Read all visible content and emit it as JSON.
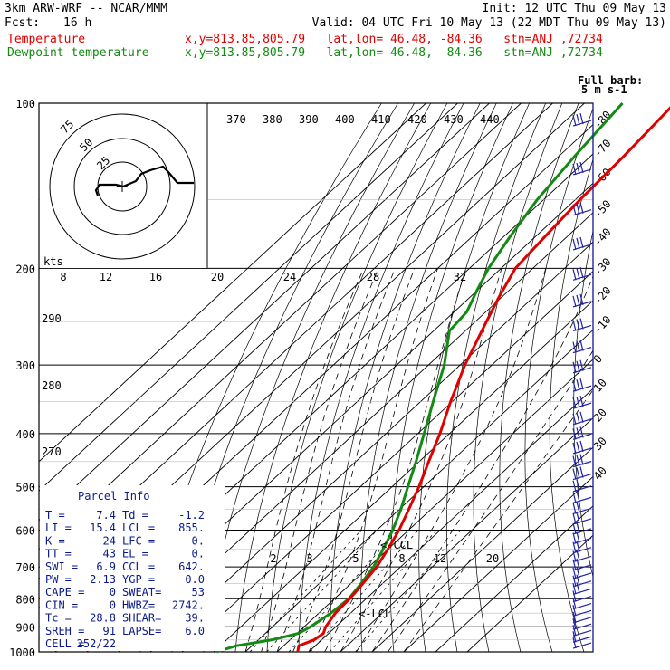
{
  "header": {
    "model": "3km ARW-WRF -- NCAR/MMM",
    "init": "Init: 12 UTC Thu 09 May 13",
    "fcst_label": "Fcst:",
    "fcst_value": "16 h",
    "valid": "Valid: 04 UTC Fri 10 May 13 (22 MDT Thu 09 May 13)",
    "temp_label": "Temperature",
    "dew_label": "Dewpoint temperature",
    "loc_temp": "x,y=813.85,805.79   lat,lon= 46.48, -84.36   stn=ANJ ,72734",
    "loc_dew": "x,y=813.85,805.79   lat,lon= 46.48, -84.36   stn=ANJ ,72734",
    "barb_note_1": "Full barb:",
    "barb_note_2": "5 m s-1"
  },
  "colors": {
    "temperature": "#e00000",
    "dewpoint": "#138a13",
    "panel": "#0b1a8a",
    "barbs": "#2222aa"
  },
  "chart_data": {
    "type": "line",
    "y_axis": "pressure (hPa), log scale",
    "pressure_ticks": [
      100,
      200,
      300,
      400,
      500,
      600,
      700,
      800,
      900,
      1000
    ],
    "isotherm_labels": [
      "-80",
      "-70",
      "-60",
      "-50",
      "-40",
      "-30",
      "-20",
      "-10",
      "0",
      "10",
      "20",
      "30",
      "40"
    ],
    "theta_e_labels": [
      "370",
      "380",
      "390",
      "400",
      "410",
      "420",
      "430",
      "440"
    ],
    "theta_labels": [
      "290",
      "280",
      "270"
    ],
    "mixing_ratio_labels": [
      "2",
      "3",
      "5",
      "8",
      "12",
      "20"
    ],
    "hodograph": {
      "unit": "kts",
      "ring_labels": [
        "75",
        "50",
        "25"
      ],
      "speed_labels": [
        "8",
        "12",
        "16",
        "20",
        "24",
        "28",
        "32"
      ]
    },
    "level_labels": {
      "ccl": "<-CCL",
      "lcl": "<-LCL"
    },
    "series": [
      {
        "name": "Temperature",
        "points": [
          [
            1000,
            6.5
          ],
          [
            975,
            4.8
          ],
          [
            950,
            7.6
          ],
          [
            925,
            8.3
          ],
          [
            900,
            6.8
          ],
          [
            850,
            5.2
          ],
          [
            800,
            4.8
          ],
          [
            750,
            3.8
          ],
          [
            700,
            2.5
          ],
          [
            650,
            0.0
          ],
          [
            600,
            -3.0
          ],
          [
            550,
            -7.0
          ],
          [
            500,
            -11.5
          ],
          [
            450,
            -17.0
          ],
          [
            400,
            -23.0
          ],
          [
            350,
            -30.5
          ],
          [
            300,
            -38.5
          ],
          [
            250,
            -46.5
          ],
          [
            225,
            -51.0
          ],
          [
            200,
            -55.5
          ],
          [
            175,
            -57.0
          ],
          [
            150,
            -58.5
          ],
          [
            125,
            -59.5
          ],
          [
            100,
            -61.5
          ]
        ]
      },
      {
        "name": "Dewpoint temperature",
        "points": [
          [
            1000,
            -19.0
          ],
          [
            975,
            -15.0
          ],
          [
            950,
            -5.5
          ],
          [
            925,
            0.5
          ],
          [
            900,
            2.0
          ],
          [
            850,
            3.8
          ],
          [
            800,
            4.5
          ],
          [
            750,
            3.2
          ],
          [
            700,
            1.5
          ],
          [
            650,
            -1.5
          ],
          [
            600,
            -5.0
          ],
          [
            550,
            -9.5
          ],
          [
            500,
            -15.0
          ],
          [
            450,
            -21.0
          ],
          [
            400,
            -28.0
          ],
          [
            350,
            -36.0
          ],
          [
            300,
            -45.0
          ],
          [
            260,
            -55.0
          ],
          [
            240,
            -56.0
          ],
          [
            220,
            -60.0
          ],
          [
            200,
            -64.0
          ],
          [
            175,
            -68.0
          ],
          [
            150,
            -72.0
          ],
          [
            125,
            -75.0
          ],
          [
            100,
            -78.0
          ]
        ]
      }
    ],
    "parcel_info": {
      "title": "Parcel Info",
      "rows": [
        [
          "T  =",
          "7.4",
          "Td =",
          "-1.2"
        ],
        [
          "LI =",
          "15.4",
          "LCL =",
          "855."
        ],
        [
          "K  =",
          "24",
          "LFC =",
          "0."
        ],
        [
          "TT =",
          "43",
          "EL  =",
          "0."
        ],
        [
          "SWI =",
          "6.9",
          "CCL =",
          "642."
        ],
        [
          "PW =",
          "2.13",
          "YGP =",
          "0.0"
        ],
        [
          "CAPE =",
          "0",
          "SWEAT=",
          "53"
        ],
        [
          "CIN  =",
          "0",
          "HWBZ=",
          "2742."
        ],
        [
          "Tc  =",
          "28.8",
          "SHEAR=",
          "39."
        ],
        [
          "SREH =",
          "91",
          "LAPSE=",
          "6.0"
        ],
        [
          "CELL =",
          "252/22",
          "",
          ""
        ]
      ]
    }
  }
}
